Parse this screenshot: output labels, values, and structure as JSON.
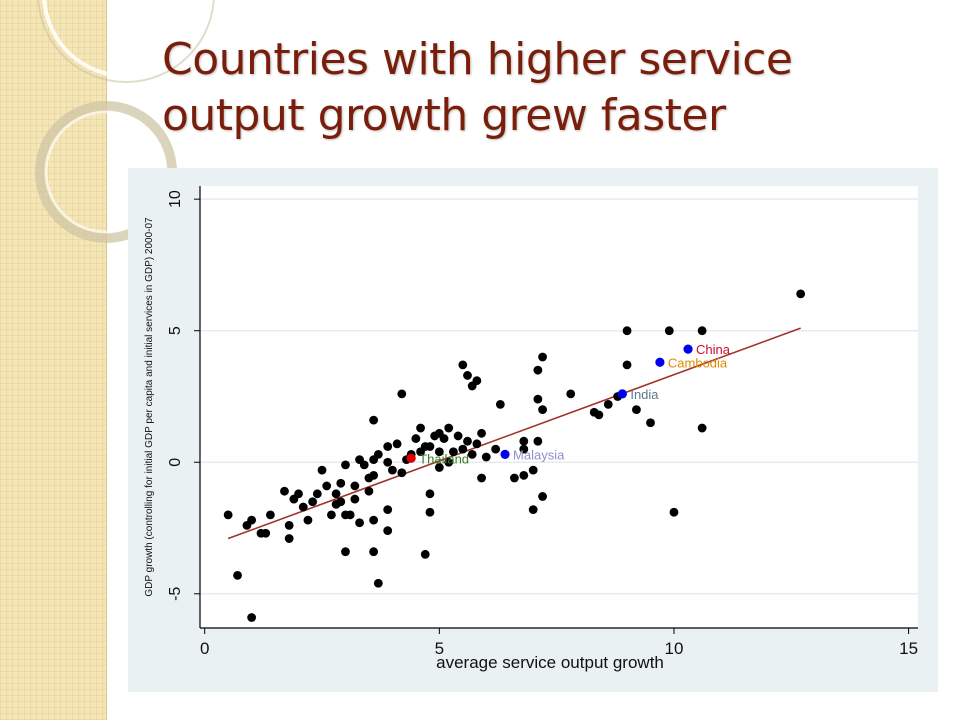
{
  "slide": {
    "title_line1": "Countries with higher service",
    "title_line2": "output growth grew faster"
  },
  "colors": {
    "title": "#7a1e0c",
    "plot_background": "#eaf1f3",
    "fit_line": "#a0322a",
    "points": "#000000",
    "china": "#c8102e",
    "cambodia": "#e08a00",
    "india": "#607890",
    "malaysia": "#8f8fcf",
    "thailand": "#3a7a2a"
  },
  "chart_data": {
    "type": "scatter",
    "xlabel": "average service output growth",
    "ylabel": "GDP growth (controlling for initial GDP per capita and initial services in GDP) 2000-07",
    "xlim": [
      -0.1,
      15.2
    ],
    "ylim": [
      -6.3,
      10.5
    ],
    "xticks": [
      0,
      5,
      10,
      15
    ],
    "yticks": [
      -5,
      0,
      5,
      10
    ],
    "grid": "horizontal",
    "fit_line": {
      "x": [
        0.5,
        12.7
      ],
      "y": [
        -2.9,
        5.1
      ]
    },
    "labeled_points": [
      {
        "label": "China",
        "x": 10.3,
        "y": 4.3,
        "color": "#c8102e",
        "marker": "#0000ee"
      },
      {
        "label": "Cambodia",
        "x": 9.7,
        "y": 3.8,
        "color": "#e08a00",
        "marker": "#0000ee"
      },
      {
        "label": "India",
        "x": 8.9,
        "y": 2.6,
        "color": "#607890",
        "marker": "#0000ee"
      },
      {
        "label": "Malaysia",
        "x": 6.4,
        "y": 0.3,
        "color": "#8f8fcf",
        "marker": "#0000ee"
      },
      {
        "label": "Thailand",
        "x": 4.4,
        "y": 0.15,
        "color": "#3a7a2a",
        "marker": "#e00000"
      }
    ],
    "points": [
      [
        12.7,
        6.4
      ],
      [
        9.0,
        5.0
      ],
      [
        9.9,
        5.0
      ],
      [
        10.6,
        5.0
      ],
      [
        10.6,
        1.3
      ],
      [
        10.0,
        -1.9
      ],
      [
        9.5,
        1.5
      ],
      [
        9.2,
        2.0
      ],
      [
        9.0,
        3.7
      ],
      [
        8.8,
        2.5
      ],
      [
        8.6,
        2.2
      ],
      [
        8.4,
        1.8
      ],
      [
        8.3,
        1.9
      ],
      [
        7.8,
        2.6
      ],
      [
        7.2,
        4.0
      ],
      [
        7.1,
        3.5
      ],
      [
        7.1,
        2.4
      ],
      [
        7.2,
        2.0
      ],
      [
        7.2,
        -1.3
      ],
      [
        7.0,
        -0.3
      ],
      [
        7.0,
        -1.8
      ],
      [
        7.1,
        0.8
      ],
      [
        6.8,
        0.8
      ],
      [
        6.8,
        0.5
      ],
      [
        6.8,
        -0.5
      ],
      [
        6.6,
        -0.6
      ],
      [
        6.3,
        2.2
      ],
      [
        6.2,
        0.5
      ],
      [
        6.0,
        0.2
      ],
      [
        5.9,
        1.1
      ],
      [
        5.8,
        3.1
      ],
      [
        5.7,
        2.9
      ],
      [
        5.6,
        3.3
      ],
      [
        5.5,
        3.7
      ],
      [
        5.8,
        0.7
      ],
      [
        5.7,
        0.3
      ],
      [
        5.6,
        0.8
      ],
      [
        5.5,
        0.5
      ],
      [
        5.4,
        1.0
      ],
      [
        5.3,
        0.4
      ],
      [
        5.2,
        1.3
      ],
      [
        5.1,
        0.9
      ],
      [
        5.0,
        1.1
      ],
      [
        5.0,
        0.4
      ],
      [
        4.9,
        1.0
      ],
      [
        5.2,
        0.0
      ],
      [
        5.0,
        -0.2
      ],
      [
        4.8,
        0.6
      ],
      [
        4.7,
        0.6
      ],
      [
        4.6,
        0.4
      ],
      [
        4.6,
        1.3
      ],
      [
        4.5,
        0.9
      ],
      [
        4.4,
        0.3
      ],
      [
        4.3,
        0.1
      ],
      [
        4.2,
        2.6
      ],
      [
        4.1,
        0.7
      ],
      [
        4.0,
        -0.3
      ],
      [
        3.9,
        0.0
      ],
      [
        3.9,
        0.6
      ],
      [
        3.7,
        0.3
      ],
      [
        3.6,
        0.1
      ],
      [
        3.6,
        -0.5
      ],
      [
        3.6,
        1.6
      ],
      [
        3.5,
        -1.1
      ],
      [
        3.5,
        -0.6
      ],
      [
        3.4,
        -0.1
      ],
      [
        3.3,
        0.1
      ],
      [
        3.2,
        -0.9
      ],
      [
        3.2,
        -1.4
      ],
      [
        3.1,
        -2.0
      ],
      [
        3.0,
        -0.1
      ],
      [
        2.9,
        -0.8
      ],
      [
        2.8,
        -1.2
      ],
      [
        2.8,
        -1.6
      ],
      [
        2.7,
        -2.0
      ],
      [
        2.6,
        -0.9
      ],
      [
        2.5,
        -0.3
      ],
      [
        2.4,
        -1.2
      ],
      [
        2.3,
        -1.5
      ],
      [
        2.2,
        -2.2
      ],
      [
        2.1,
        -1.7
      ],
      [
        2.0,
        -1.2
      ],
      [
        1.9,
        -1.4
      ],
      [
        1.8,
        -2.4
      ],
      [
        1.8,
        -2.9
      ],
      [
        1.7,
        -1.1
      ],
      [
        1.4,
        -2.0
      ],
      [
        1.3,
        -2.7
      ],
      [
        1.2,
        -2.7
      ],
      [
        1.0,
        -2.2
      ],
      [
        0.9,
        -2.4
      ],
      [
        0.5,
        -2.0
      ],
      [
        0.7,
        -4.3
      ],
      [
        1.0,
        -5.9
      ],
      [
        3.0,
        -3.4
      ],
      [
        3.6,
        -2.2
      ],
      [
        3.6,
        -3.4
      ],
      [
        3.7,
        -4.6
      ],
      [
        3.9,
        -2.6
      ],
      [
        3.9,
        -1.8
      ],
      [
        4.8,
        -1.2
      ],
      [
        4.8,
        -1.9
      ],
      [
        4.7,
        -3.5
      ],
      [
        3.3,
        -2.3
      ],
      [
        3.0,
        -2.0
      ],
      [
        2.9,
        -1.5
      ],
      [
        4.2,
        -0.4
      ],
      [
        5.9,
        -0.6
      ]
    ]
  }
}
